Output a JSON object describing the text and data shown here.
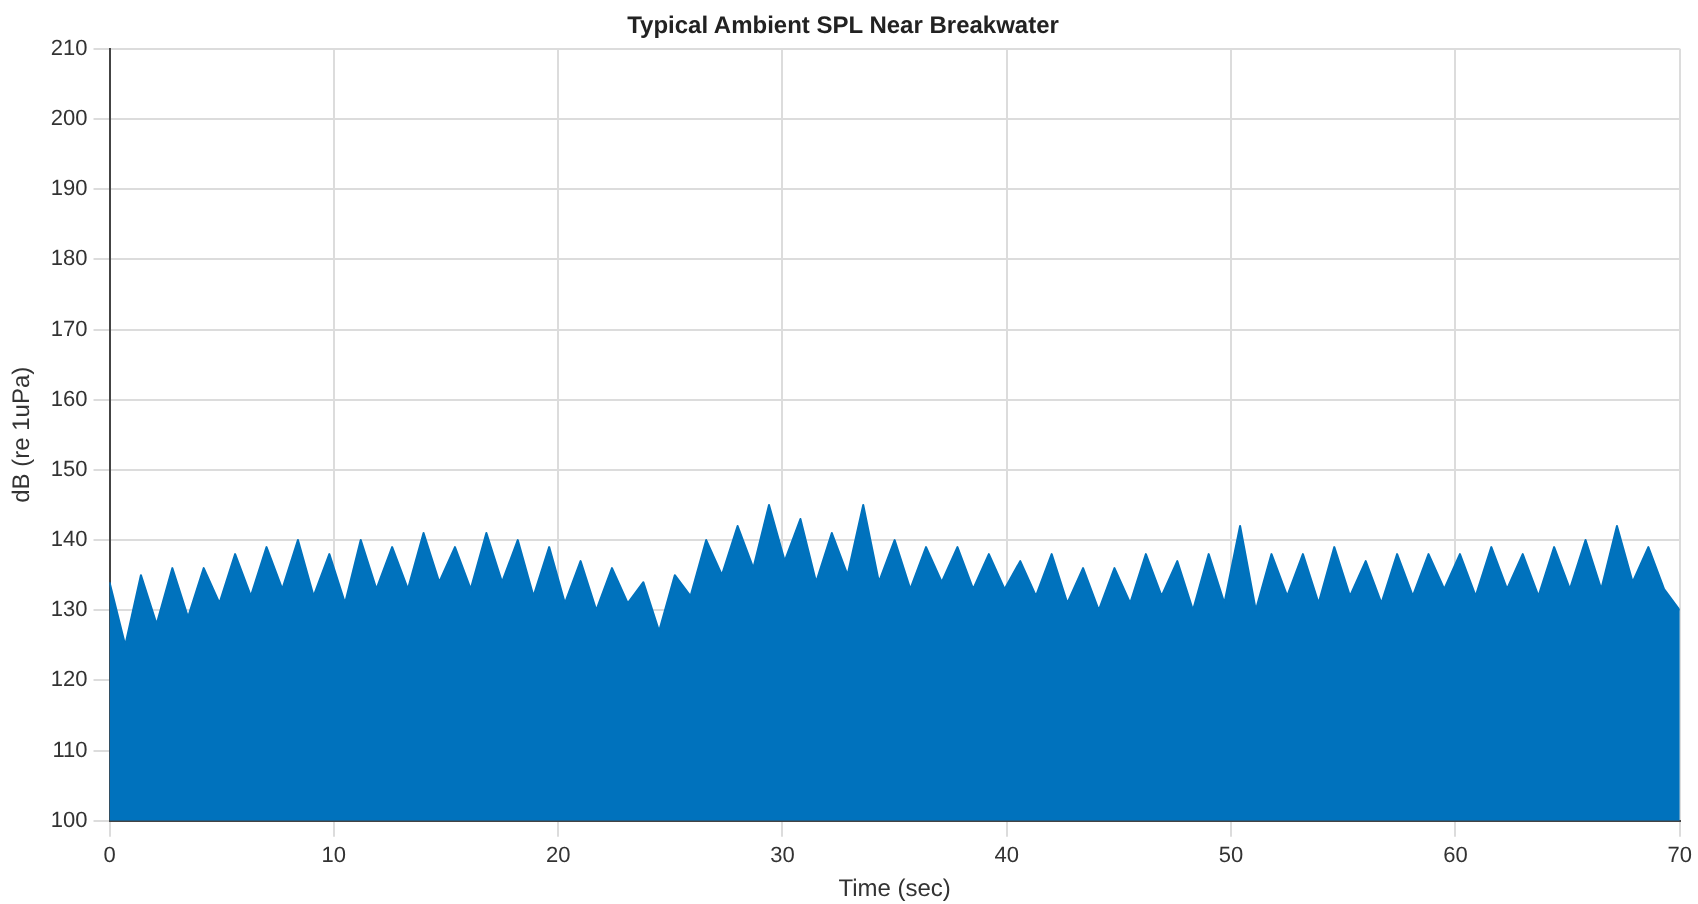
{
  "chart_data": {
    "type": "area",
    "title": "Typical Ambient SPL Near Breakwater",
    "xlabel": "Time (sec)",
    "ylabel": "dB (re 1uPa)",
    "x": [
      0,
      0.7,
      1.4,
      2.1,
      2.8,
      3.5,
      4.2,
      4.9,
      5.6,
      6.3,
      7.0,
      7.7,
      8.4,
      9.1,
      9.8,
      10.5,
      11.2,
      11.9,
      12.6,
      13.3,
      14.0,
      14.7,
      15.4,
      16.1,
      16.8,
      17.5,
      18.2,
      18.9,
      19.6,
      20.3,
      21.0,
      21.7,
      22.4,
      23.1,
      23.8,
      24.5,
      25.2,
      25.9,
      26.6,
      27.3,
      28.0,
      28.7,
      29.4,
      30.1,
      30.8,
      31.5,
      32.2,
      32.9,
      33.6,
      34.3,
      35.0,
      35.7,
      36.4,
      37.1,
      37.8,
      38.5,
      39.2,
      39.9,
      40.6,
      41.3,
      42.0,
      42.7,
      43.4,
      44.1,
      44.8,
      45.5,
      46.2,
      46.9,
      47.6,
      48.3,
      49.0,
      49.7,
      50.4,
      51.1,
      51.8,
      52.5,
      53.2,
      53.9,
      54.6,
      55.3,
      56.0,
      56.7,
      57.4,
      58.1,
      58.8,
      59.5,
      60.2,
      60.9,
      61.6,
      62.3,
      63.0,
      63.7,
      64.4,
      65.1,
      65.8,
      66.5,
      67.2,
      67.9,
      68.6,
      69.3,
      70
    ],
    "values": [
      134,
      125,
      135,
      128,
      136,
      129,
      136,
      131,
      138,
      132,
      139,
      133,
      140,
      132,
      138,
      131,
      140,
      133,
      139,
      133,
      141,
      134,
      139,
      133,
      141,
      134,
      140,
      132,
      139,
      131,
      137,
      130,
      136,
      131,
      134,
      127,
      135,
      132,
      140,
      135,
      142,
      136,
      145,
      137,
      143,
      134,
      141,
      135,
      145,
      134,
      140,
      133,
      139,
      134,
      139,
      133,
      138,
      133,
      137,
      132,
      138,
      131,
      136,
      130,
      136,
      131,
      138,
      132,
      137,
      130,
      138,
      131,
      142,
      130,
      138,
      132,
      138,
      131,
      139,
      132,
      137,
      131,
      138,
      132,
      138,
      133,
      138,
      132,
      139,
      133,
      138,
      132,
      139,
      133,
      140,
      133,
      142,
      134,
      139,
      133,
      130
    ],
    "color": "#0072bd",
    "xlim": [
      0,
      70
    ],
    "xticks": [
      0,
      10,
      20,
      30,
      40,
      50,
      60,
      70
    ],
    "ylim": [
      100,
      210
    ],
    "yticks": [
      100,
      110,
      120,
      130,
      140,
      150,
      160,
      170,
      180,
      190,
      200,
      210
    ],
    "grid": true
  }
}
